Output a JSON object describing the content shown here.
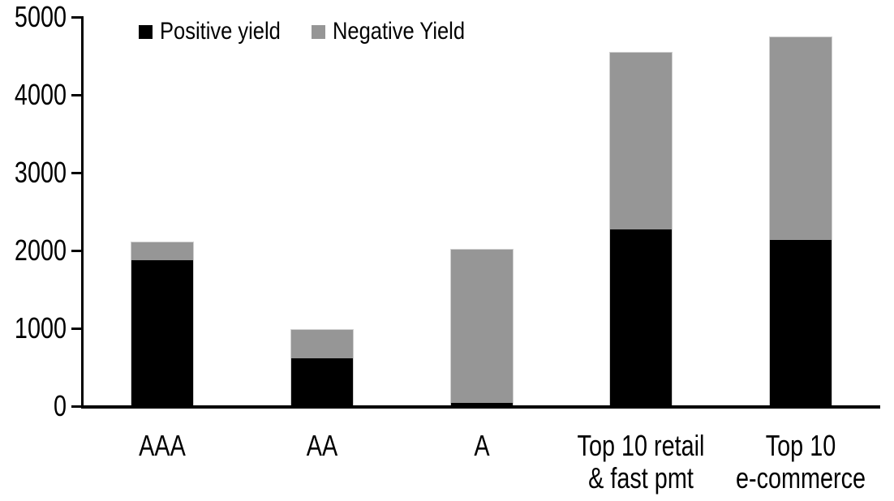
{
  "chart_data": {
    "type": "bar",
    "stacked": true,
    "title": "",
    "xlabel": "",
    "ylabel": "",
    "categories": [
      "AAA",
      "AA",
      "A",
      "Top 10 retail & fast pmt",
      "Top 10 e-commerce"
    ],
    "category_label_lines": [
      [
        "AAA"
      ],
      [
        "AA"
      ],
      [
        "A"
      ],
      [
        "Top 10 retail",
        "& fast pmt"
      ],
      [
        "Top 10",
        "e-commerce"
      ]
    ],
    "series": [
      {
        "name": "Positive yield",
        "color": "#000000",
        "values": [
          1880,
          610,
          40,
          2270,
          2140
        ]
      },
      {
        "name": "Negative Yield",
        "color": "#969696",
        "values": [
          235,
          375,
          1985,
          2280,
          2610
        ]
      }
    ],
    "stack_totals": [
      2115,
      985,
      2025,
      4550,
      4750
    ],
    "ylim": [
      0,
      5000
    ],
    "yticks": [
      0,
      1000,
      2000,
      3000,
      4000,
      5000
    ],
    "grid": false,
    "legend_position": "top-left"
  },
  "colors": {
    "axis": "#000000",
    "background": "#ffffff",
    "bar_border": "#cfcfcf"
  }
}
